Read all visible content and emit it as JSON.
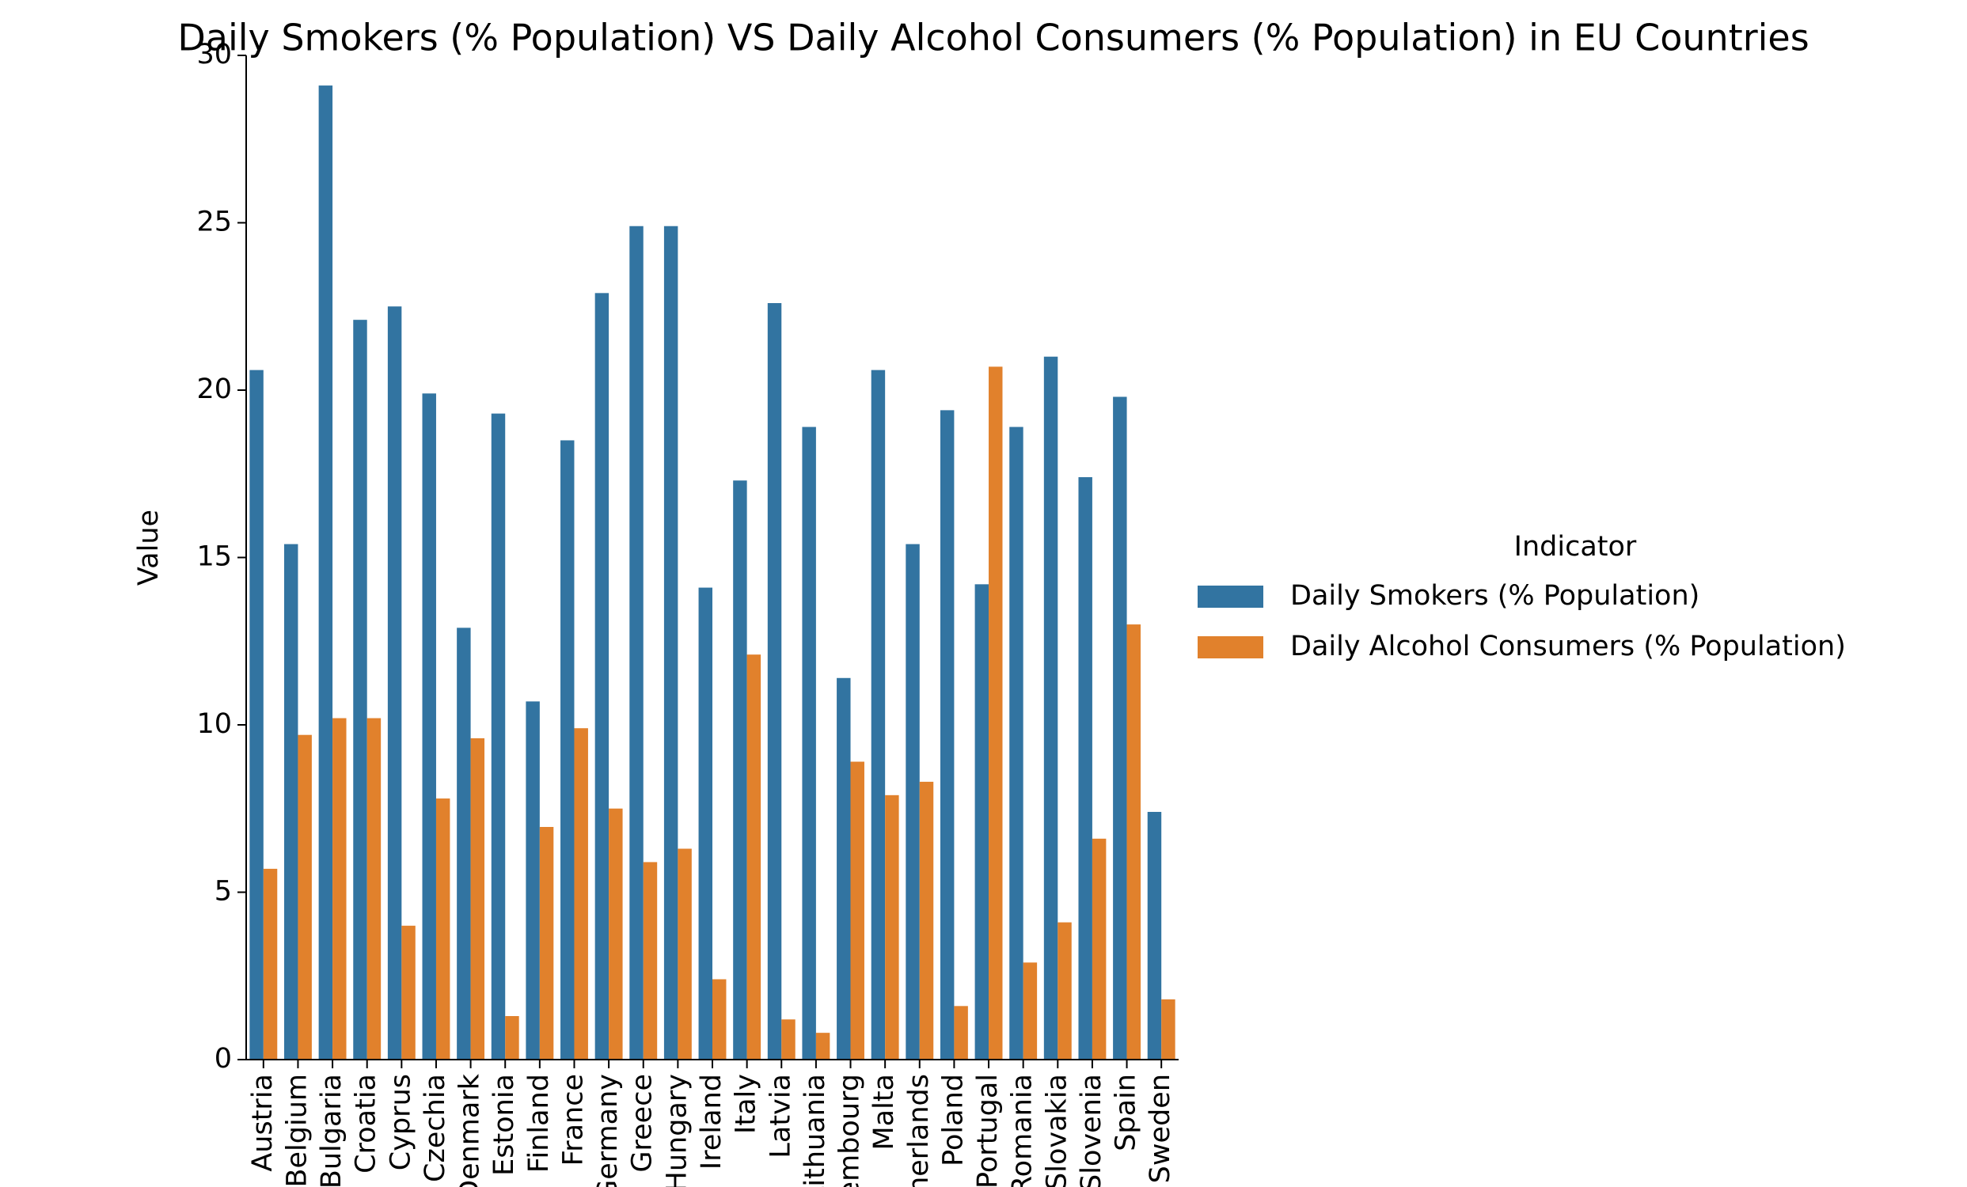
{
  "chart_data": {
    "type": "bar",
    "title": "Daily Smokers (% Population) VS Daily Alcohol Consumers (% Population) in EU Countries",
    "y_label": "Value",
    "legend_title": "Indicator",
    "legend_position": "right",
    "categories": [
      "Austria",
      "Belgium",
      "Bulgaria",
      "Croatia",
      "Cyprus",
      "Czechia",
      "Denmark",
      "Estonia",
      "Finland",
      "France",
      "Germany",
      "Greece",
      "Hungary",
      "Ireland",
      "Italy",
      "Latvia",
      "Lithuania",
      "Luxembourg",
      "Malta",
      "Netherlands",
      "Poland",
      "Portugal",
      "Romania",
      "Slovakia",
      "Slovenia",
      "Spain",
      "Sweden"
    ],
    "series": [
      {
        "name": "Daily Smokers (% Population)",
        "color": "#3274a1",
        "values": [
          20.6,
          15.4,
          29.1,
          22.1,
          22.5,
          19.9,
          12.9,
          19.3,
          10.7,
          18.5,
          22.9,
          24.9,
          24.9,
          14.1,
          17.3,
          22.6,
          18.9,
          11.4,
          20.6,
          15.4,
          19.4,
          14.2,
          18.9,
          21.0,
          17.4,
          19.8,
          7.4
        ]
      },
      {
        "name": "Daily Alcohol Consumers (% Population)",
        "color": "#e1812c",
        "values": [
          5.7,
          9.7,
          10.2,
          10.2,
          4.0,
          7.8,
          9.6,
          1.3,
          6.95,
          9.9,
          7.5,
          5.9,
          6.3,
          2.4,
          12.1,
          1.2,
          0.8,
          8.9,
          7.9,
          8.3,
          1.6,
          20.7,
          2.9,
          4.1,
          6.6,
          13.0,
          1.8
        ]
      }
    ],
    "ylim": [
      0,
      30
    ],
    "yticks": [
      0,
      5,
      10,
      15,
      20,
      25,
      30
    ],
    "grid": false
  }
}
